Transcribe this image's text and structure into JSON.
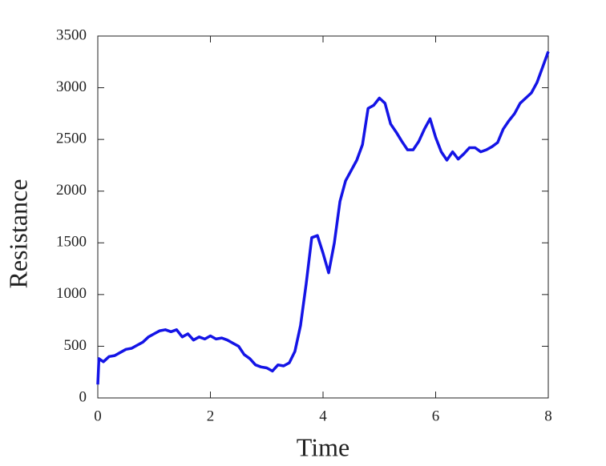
{
  "chart_data": {
    "type": "line",
    "x_label": "Time",
    "y_label": "Resistance",
    "color": "#1414e6",
    "x": [
      0,
      0.02,
      0.1,
      0.2,
      0.3,
      0.4,
      0.5,
      0.6,
      0.7,
      0.8,
      0.9,
      1.0,
      1.1,
      1.2,
      1.3,
      1.4,
      1.5,
      1.6,
      1.7,
      1.8,
      1.9,
      2.0,
      2.1,
      2.2,
      2.3,
      2.4,
      2.5,
      2.6,
      2.7,
      2.8,
      2.9,
      3.0,
      3.1,
      3.2,
      3.3,
      3.4,
      3.5,
      3.6,
      3.7,
      3.8,
      3.9,
      4.0,
      4.1,
      4.2,
      4.3,
      4.4,
      4.5,
      4.6,
      4.7,
      4.8,
      4.9,
      5.0,
      5.1,
      5.2,
      5.3,
      5.4,
      5.5,
      5.6,
      5.7,
      5.8,
      5.9,
      6.0,
      6.1,
      6.2,
      6.3,
      6.4,
      6.5,
      6.6,
      6.7,
      6.8,
      6.9,
      7.0,
      7.1,
      7.2,
      7.3,
      7.4,
      7.5,
      7.6,
      7.7,
      7.8,
      7.9,
      8.0
    ],
    "values": [
      130,
      380,
      350,
      400,
      410,
      440,
      470,
      480,
      510,
      540,
      590,
      620,
      650,
      660,
      640,
      660,
      590,
      620,
      560,
      590,
      570,
      600,
      570,
      580,
      560,
      530,
      500,
      420,
      380,
      320,
      300,
      290,
      260,
      320,
      310,
      340,
      450,
      700,
      1100,
      1550,
      1570,
      1400,
      1210,
      1500,
      1900,
      2100,
      2200,
      2300,
      2450,
      2800,
      2830,
      2900,
      2850,
      2650,
      2570,
      2480,
      2400,
      2400,
      2480,
      2600,
      2700,
      2520,
      2380,
      2300,
      2380,
      2310,
      2360,
      2420,
      2420,
      2380,
      2400,
      2430,
      2470,
      2600,
      2680,
      2750,
      2850,
      2900,
      2950,
      3050,
      3200,
      3350
    ],
    "xlim": [
      0,
      8
    ],
    "ylim": [
      0,
      3500
    ],
    "xticks": [
      0,
      2,
      4,
      6,
      8
    ],
    "yticks": [
      0,
      500,
      1000,
      1500,
      2000,
      2500,
      3000,
      3500
    ]
  }
}
